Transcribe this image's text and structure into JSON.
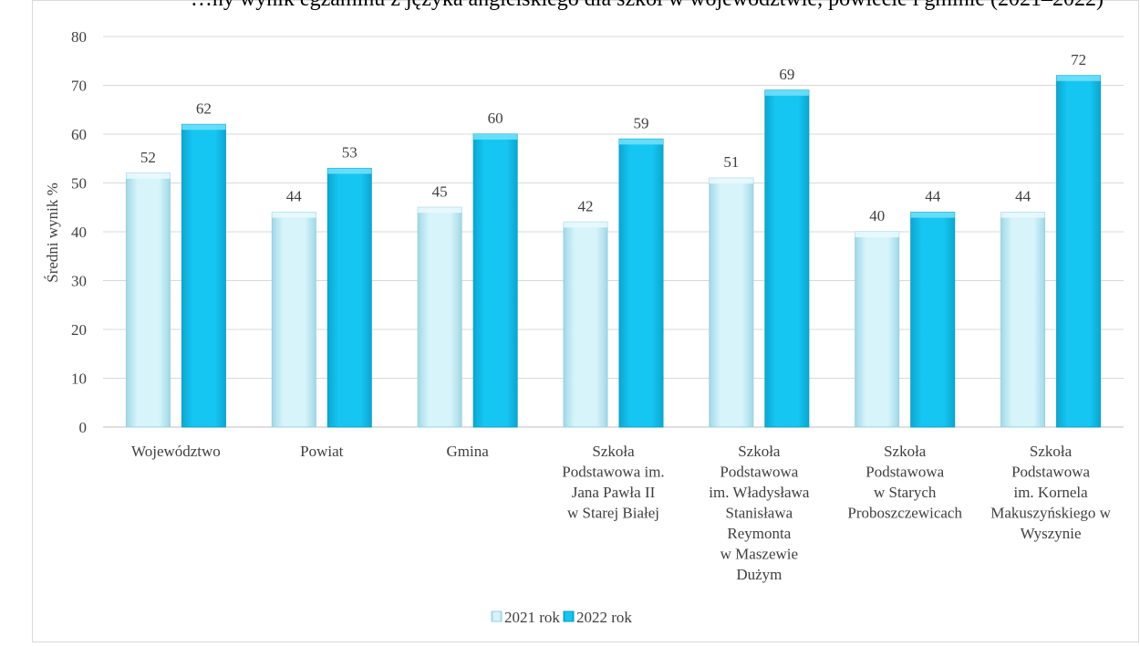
{
  "chart_data": {
    "type": "bar",
    "title": "…ny wynik egzaminu z języka angielskiego dla szkół w województwie, powiecie i gminie (2021–2022)",
    "ylabel": "Średni wynik %",
    "xlabel": "",
    "ylim": [
      0,
      80
    ],
    "yticks": [
      0,
      10,
      20,
      30,
      40,
      50,
      60,
      70,
      80
    ],
    "grid": true,
    "legend_position": "bottom",
    "categories": [
      [
        "Województwo"
      ],
      [
        "Powiat"
      ],
      [
        "Gmina"
      ],
      [
        "Szkoła",
        "Podstawowa im.",
        "Jana Pawła II",
        "w Starej Białej"
      ],
      [
        "Szkoła",
        "Podstawowa",
        "im. Władysława",
        "Stanisława",
        "Reymonta",
        "w Maszewie",
        "Dużym"
      ],
      [
        "Szkoła",
        "Podstawowa",
        "w Starych",
        "Proboszczewicach"
      ],
      [
        "Szkoła",
        "Podstawowa",
        "im. Kornela",
        "Makuszyńskiego w",
        "Wyszynie"
      ]
    ],
    "series": [
      {
        "name": "2021 rok",
        "color": "#c6eef7",
        "values": [
          52,
          44,
          45,
          42,
          51,
          40,
          44
        ]
      },
      {
        "name": "2022 rok",
        "color": "#14c4f0",
        "values": [
          62,
          53,
          60,
          59,
          69,
          44,
          72
        ]
      }
    ]
  }
}
